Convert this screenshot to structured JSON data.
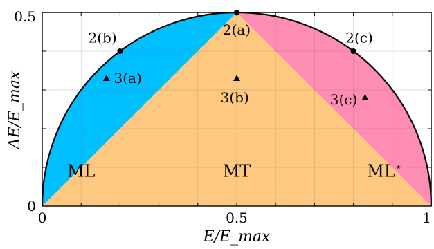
{
  "chart_data": {
    "type": "scatter",
    "xlabel": "E/E_max",
    "ylabel": "ΔE/E_max",
    "xlim": [
      0,
      1
    ],
    "ylim": [
      0,
      0.5
    ],
    "x_ticks": [
      {
        "value": 0,
        "label": "0"
      },
      {
        "value": 0.5,
        "label": "0.5"
      },
      {
        "value": 1,
        "label": "1"
      }
    ],
    "y_ticks": [
      {
        "value": 0,
        "label": "0"
      },
      {
        "value": 0.5,
        "label": "0.5"
      }
    ],
    "grid": true,
    "boundary": "semicircle ΔE² = E(E_max − E)",
    "regions": [
      {
        "id": "ml",
        "label": "ML",
        "color": "#00bfff",
        "label_at": [
          0.1,
          0.09
        ]
      },
      {
        "id": "mt",
        "label": "MT",
        "color": "#ffc880",
        "label_at": [
          0.5,
          0.09
        ]
      },
      {
        "id": "mlstar",
        "label": "ML",
        "label_sup": "⋆",
        "color": "#ff8cb4",
        "label_at": [
          0.88,
          0.09
        ]
      }
    ],
    "points": [
      {
        "label": "2(a)",
        "x": 0.5,
        "y": 0.5,
        "marker": "circle",
        "label_at": [
          0.5,
          0.455
        ]
      },
      {
        "label": "2(b)",
        "x": 0.2,
        "y": 0.4,
        "marker": "circle",
        "label_at": [
          0.155,
          0.435
        ]
      },
      {
        "label": "2(c)",
        "x": 0.8,
        "y": 0.4,
        "marker": "circle",
        "label_at": [
          0.815,
          0.435
        ]
      },
      {
        "label": "3(a)",
        "x": 0.165,
        "y": 0.33,
        "marker": "triangle",
        "label_at": [
          0.22,
          0.33
        ]
      },
      {
        "label": "3(b)",
        "x": 0.5,
        "y": 0.33,
        "marker": "triangle",
        "label_at": [
          0.495,
          0.28
        ]
      },
      {
        "label": "3(c)",
        "x": 0.83,
        "y": 0.28,
        "marker": "triangle",
        "label_at": [
          0.775,
          0.275
        ]
      }
    ]
  }
}
